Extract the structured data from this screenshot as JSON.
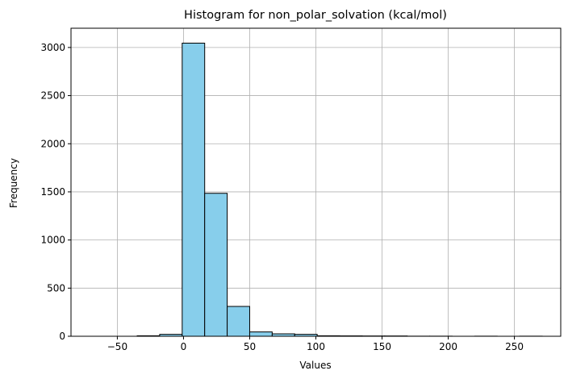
{
  "chart_data": {
    "type": "bar",
    "title": "Histogram for non_polar_solvation (kcal/mol)",
    "xlabel": "Values",
    "ylabel": "Frequency",
    "xlim": [
      -85,
      285
    ],
    "ylim": [
      0,
      3200
    ],
    "xticks": [
      -50,
      0,
      50,
      100,
      150,
      200,
      250
    ],
    "yticks": [
      0,
      500,
      1000,
      1500,
      2000,
      2500,
      3000
    ],
    "grid": true,
    "bar_color": "#87CEEB",
    "edge_color": "#000000",
    "bins": [
      {
        "x0": -69,
        "x1": -52,
        "count": 0
      },
      {
        "x0": -52,
        "x1": -35,
        "count": 0
      },
      {
        "x0": -35,
        "x1": -18,
        "count": 5
      },
      {
        "x0": -18,
        "x1": -1,
        "count": 20
      },
      {
        "x0": -1,
        "x1": 16,
        "count": 3045
      },
      {
        "x0": 16,
        "x1": 33,
        "count": 1485
      },
      {
        "x0": 33,
        "x1": 50,
        "count": 310
      },
      {
        "x0": 50,
        "x1": 67,
        "count": 45
      },
      {
        "x0": 67,
        "x1": 84,
        "count": 25
      },
      {
        "x0": 84,
        "x1": 101,
        "count": 20
      },
      {
        "x0": 101,
        "x1": 118,
        "count": 5
      },
      {
        "x0": 118,
        "x1": 135,
        "count": 4
      },
      {
        "x0": 135,
        "x1": 152,
        "count": 3
      },
      {
        "x0": 152,
        "x1": 169,
        "count": 3
      },
      {
        "x0": 169,
        "x1": 186,
        "count": 1
      },
      {
        "x0": 186,
        "x1": 203,
        "count": 1
      },
      {
        "x0": 203,
        "x1": 220,
        "count": 0
      },
      {
        "x0": 220,
        "x1": 237,
        "count": 1
      },
      {
        "x0": 237,
        "x1": 254,
        "count": 0
      },
      {
        "x0": 254,
        "x1": 271,
        "count": 1
      }
    ]
  }
}
